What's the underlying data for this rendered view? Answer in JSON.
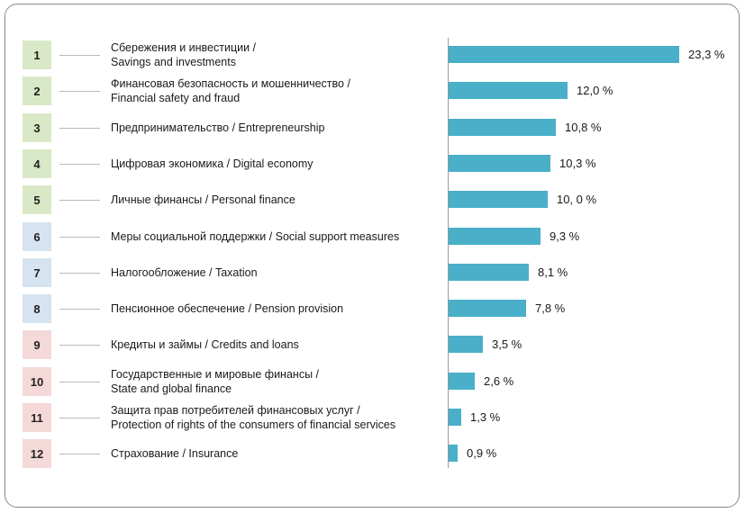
{
  "colors": {
    "bar": "#4aafc9",
    "group_green": "#d9e8c6",
    "group_blue": "#d6e3f0",
    "group_pink": "#f5d9d9"
  },
  "chart_data": {
    "type": "bar",
    "orientation": "horizontal",
    "title": "",
    "xlabel": "",
    "ylabel": "",
    "grid": false,
    "xlim": [
      0,
      23.3
    ],
    "categories": [
      {
        "rank": "1",
        "label_lines": [
          "Сбережения и инвестиции /",
          "Savings and investments"
        ],
        "value": 23.3,
        "value_label": "23,3 %",
        "group": "green"
      },
      {
        "rank": "2",
        "label_lines": [
          "Финансовая безопасность и мошенничество /",
          "Financial safety and fraud"
        ],
        "value": 12.0,
        "value_label": "12,0 %",
        "group": "green"
      },
      {
        "rank": "3",
        "label_lines": [
          "Предпринимательство / Entrepreneurship"
        ],
        "value": 10.8,
        "value_label": "10,8 %",
        "group": "green"
      },
      {
        "rank": "4",
        "label_lines": [
          "Цифровая экономика / Digital economy"
        ],
        "value": 10.3,
        "value_label": "10,3 %",
        "group": "green"
      },
      {
        "rank": "5",
        "label_lines": [
          "Личные финансы / Personal finance"
        ],
        "value": 10.0,
        "value_label": "10, 0 %",
        "group": "green"
      },
      {
        "rank": "6",
        "label_lines": [
          "Меры социальной поддержки / Social support measures"
        ],
        "value": 9.3,
        "value_label": "9,3 %",
        "group": "blue"
      },
      {
        "rank": "7",
        "label_lines": [
          "Налогообложение / Taxation"
        ],
        "value": 8.1,
        "value_label": "8,1 %",
        "group": "blue"
      },
      {
        "rank": "8",
        "label_lines": [
          "Пенсионное обеспечение / Pension provision"
        ],
        "value": 7.8,
        "value_label": "7,8 %",
        "group": "blue"
      },
      {
        "rank": "9",
        "label_lines": [
          "Кредиты и займы / Credits and loans"
        ],
        "value": 3.5,
        "value_label": "3,5 %",
        "group": "pink"
      },
      {
        "rank": "10",
        "label_lines": [
          "Государственные и мировые финансы /",
          "State and global finance"
        ],
        "value": 2.6,
        "value_label": "2,6 %",
        "group": "pink"
      },
      {
        "rank": "11",
        "label_lines": [
          "Защита прав потребителей финансовых услуг /",
          "Protection of rights of the consumers of financial services"
        ],
        "value": 1.3,
        "value_label": "1,3 %",
        "group": "pink"
      },
      {
        "rank": "12",
        "label_lines": [
          "Страхование / Insurance"
        ],
        "value": 0.9,
        "value_label": "0,9 %",
        "group": "pink"
      }
    ]
  }
}
